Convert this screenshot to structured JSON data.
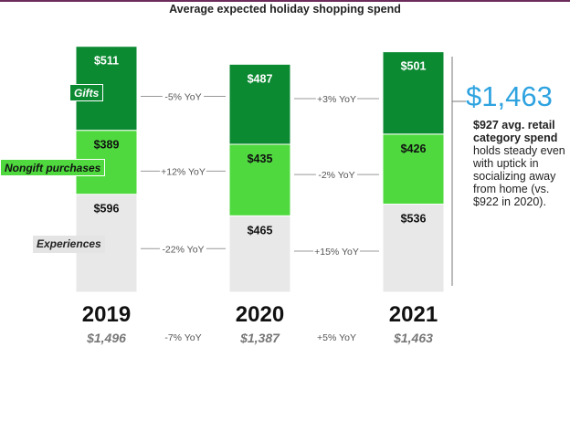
{
  "title": "Average expected holiday shopping spend",
  "categories": {
    "gifts": "Gifts",
    "nongift": "Nongift purchases",
    "experiences": "Experiences"
  },
  "colors": {
    "gifts": "#0c8a32",
    "nongift": "#4fd93f",
    "experiences": "#e8e8e8",
    "accent": "#2ea3e0",
    "topline": "#6b2c5a"
  },
  "chart_data": {
    "type": "bar",
    "stacked": true,
    "categories": [
      "2019",
      "2020",
      "2021"
    ],
    "series": [
      {
        "name": "Experiences",
        "values": [
          596,
          465,
          536
        ],
        "labels": [
          "$596",
          "$465",
          "$536"
        ]
      },
      {
        "name": "Nongift purchases",
        "values": [
          389,
          435,
          426
        ],
        "labels": [
          "$389",
          "$435",
          "$426"
        ]
      },
      {
        "name": "Gifts",
        "values": [
          511,
          487,
          501
        ],
        "labels": [
          "$511",
          "$487",
          "$501"
        ]
      }
    ],
    "totals": [
      "$1,496",
      "$1,387",
      "$1,463"
    ],
    "yoy_changes": {
      "gifts": [
        "-5% YoY",
        "+3% YoY"
      ],
      "nongift": [
        "+12% YoY",
        "-2% YoY"
      ],
      "experiences": [
        "-22% YoY",
        "+15% YoY"
      ],
      "total": [
        "-7% YoY",
        "+5% YoY"
      ]
    },
    "title": "Average expected holiday shopping spend"
  },
  "callout": {
    "total": "$1,463",
    "bold_text": "$927 avg. retail category spend",
    "text": " holds steady even with uptick in socializing away from home (vs. $922 in 2020)."
  }
}
